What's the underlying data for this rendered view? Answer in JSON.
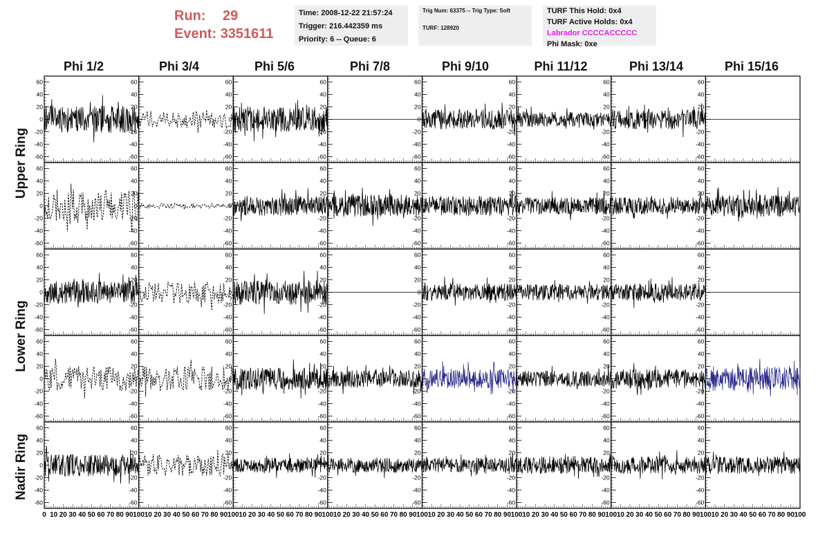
{
  "header": {
    "run_label": "Run:",
    "run_value": "29",
    "event_label": "Event:",
    "event_value": "3351611",
    "time": "Time: 2008-12-22 21:57:24",
    "trigger": "Trigger: 216.442359 ms",
    "priority": "Priority: 6 -- Queue: 6",
    "trig_num": "Trig Num: 63375 -- Trig Type: Soft",
    "turf": "TURF: 128920",
    "turf_this_hold": "TURF This Hold: 0x4",
    "turf_active_holds": "TURF Active Holds: 0x4",
    "labrador": "Labrador CCCCACCCCC",
    "phi_mask": "Phi Mask: 0xe"
  },
  "colors": {
    "header_red": "#d05a5a",
    "labrador_magenta": "#e020e0",
    "trace_black": "#000000",
    "trace_blue": "#2a2a8a",
    "info_bg": "#eeeeee"
  },
  "chart_data": {
    "type": "line",
    "columns": [
      "Phi 1/2",
      "Phi 3/4",
      "Phi 5/6",
      "Phi 7/8",
      "Phi 9/10",
      "Phi 11/12",
      "Phi 13/14",
      "Phi 15/16"
    ],
    "rows": [
      "Upper Ring",
      "Upper Ring",
      "Lower Ring",
      "Lower Ring",
      "Nadir Ring"
    ],
    "ring_labels": [
      "Upper Ring",
      "Lower Ring",
      "Nadir Ring"
    ],
    "ylim": [
      -65,
      65
    ],
    "yticks": [
      -60,
      -40,
      -20,
      0,
      20,
      40,
      60
    ],
    "xlim": [
      0,
      100
    ],
    "xticks": [
      0,
      10,
      20,
      30,
      40,
      50,
      60,
      70,
      80,
      90,
      100
    ],
    "grid": false,
    "panels": [
      [
        {
          "style": "solid",
          "color": "black",
          "amp": 22,
          "seed": 11
        },
        {
          "style": "dashed",
          "color": "black",
          "amp": 14,
          "seed": 12
        },
        {
          "style": "solid",
          "color": "black",
          "amp": 20,
          "seed": 13
        },
        {
          "style": "flat",
          "color": "black",
          "amp": 0,
          "seed": 14
        },
        {
          "style": "solid",
          "color": "black",
          "amp": 16,
          "seed": 15
        },
        {
          "style": "solid",
          "color": "black",
          "amp": 12,
          "seed": 16
        },
        {
          "style": "solid",
          "color": "black",
          "amp": 16,
          "seed": 17
        },
        {
          "style": "flat",
          "color": "black",
          "amp": 0,
          "seed": 18
        }
      ],
      [
        {
          "style": "dashed",
          "color": "black",
          "amp": 28,
          "seed": 21
        },
        {
          "style": "dashed",
          "color": "black",
          "amp": 4,
          "seed": 22
        },
        {
          "style": "solid",
          "color": "black",
          "amp": 16,
          "seed": 23
        },
        {
          "style": "solid",
          "color": "black",
          "amp": 18,
          "seed": 24
        },
        {
          "style": "solid",
          "color": "black",
          "amp": 16,
          "seed": 25
        },
        {
          "style": "solid",
          "color": "black",
          "amp": 14,
          "seed": 26
        },
        {
          "style": "solid",
          "color": "black",
          "amp": 14,
          "seed": 27
        },
        {
          "style": "solid",
          "color": "black",
          "amp": 18,
          "seed": 28
        }
      ],
      [
        {
          "style": "solid",
          "color": "black",
          "amp": 18,
          "seed": 31
        },
        {
          "style": "dashed",
          "color": "black",
          "amp": 18,
          "seed": 32
        },
        {
          "style": "solid",
          "color": "black",
          "amp": 20,
          "seed": 33
        },
        {
          "style": "flat",
          "color": "black",
          "amp": 0,
          "seed": 34
        },
        {
          "style": "solid",
          "color": "black",
          "amp": 14,
          "seed": 35
        },
        {
          "style": "solid",
          "color": "black",
          "amp": 13,
          "seed": 36
        },
        {
          "style": "solid",
          "color": "black",
          "amp": 14,
          "seed": 37
        },
        {
          "style": "flat",
          "color": "black",
          "amp": 0,
          "seed": 38
        }
      ],
      [
        {
          "style": "dashed",
          "color": "black",
          "amp": 20,
          "seed": 41
        },
        {
          "style": "dashed",
          "color": "black",
          "amp": 20,
          "seed": 42
        },
        {
          "style": "solid",
          "color": "black",
          "amp": 18,
          "seed": 43
        },
        {
          "style": "solid",
          "color": "black",
          "amp": 14,
          "seed": 44
        },
        {
          "style": "solid",
          "color": "blue",
          "amp": 16,
          "seed": 45
        },
        {
          "style": "solid",
          "color": "black",
          "amp": 13,
          "seed": 46
        },
        {
          "style": "solid",
          "color": "black",
          "amp": 16,
          "seed": 47
        },
        {
          "style": "solid",
          "color": "blue",
          "amp": 20,
          "seed": 48
        }
      ],
      [
        {
          "style": "solid",
          "color": "black",
          "amp": 18,
          "seed": 51
        },
        {
          "style": "dashed",
          "color": "black",
          "amp": 18,
          "seed": 52
        },
        {
          "style": "solid",
          "color": "black",
          "amp": 12,
          "seed": 53
        },
        {
          "style": "solid",
          "color": "black",
          "amp": 12,
          "seed": 54
        },
        {
          "style": "solid",
          "color": "black",
          "amp": 12,
          "seed": 55
        },
        {
          "style": "solid",
          "color": "black",
          "amp": 14,
          "seed": 56
        },
        {
          "style": "solid",
          "color": "black",
          "amp": 14,
          "seed": 57
        },
        {
          "style": "solid",
          "color": "black",
          "amp": 14,
          "seed": 58
        }
      ]
    ]
  }
}
